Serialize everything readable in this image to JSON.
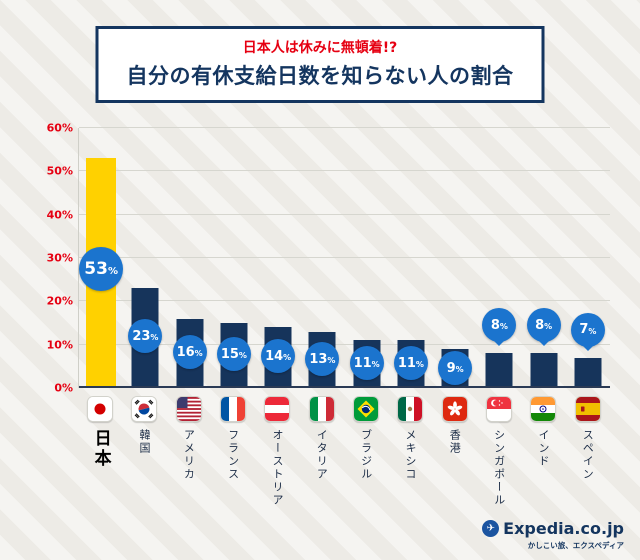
{
  "header": {
    "subtitle": "日本人は休みに無頓着!?",
    "title": "自分の有休支給日数を知らない人の割合"
  },
  "chart_data": {
    "type": "bar",
    "title": "自分の有休支給日数を知らない人の割合",
    "categories": [
      "日本",
      "韓国",
      "アメリカ",
      "フランス",
      "オーストリア",
      "イタリア",
      "ブラジル",
      "メキシコ",
      "香港",
      "シンガポール",
      "インド",
      "スペイン"
    ],
    "values": [
      53,
      23,
      16,
      15,
      14,
      13,
      11,
      11,
      9,
      8,
      8,
      7
    ],
    "value_labels": [
      "53%",
      "23%",
      "16%",
      "15%",
      "14%",
      "13%",
      "11%",
      "11%",
      "9%",
      "8%",
      "8%",
      "7%"
    ],
    "flags": [
      "japan-flag",
      "korea-flag",
      "usa-flag",
      "france-flag",
      "austria-flag",
      "italy-flag",
      "brazil-flag",
      "mexico-flag",
      "hongkong-flag",
      "singapore-flag",
      "india-flag",
      "spain-flag"
    ],
    "ylim": [
      0,
      60
    ],
    "yticks": [
      "0%",
      "10%",
      "20%",
      "30%",
      "40%",
      "50%",
      "60%"
    ],
    "highlight_index": 0,
    "grid": true,
    "legend": "none",
    "colors": {
      "highlight": "#FFD100",
      "bar": "#16345B",
      "badge": "#1B74CE",
      "axis_label": "#E60012"
    }
  },
  "footer": {
    "logo_text": "Expedia.co.jp",
    "tagline": "かしこい旅、エクスペディア"
  }
}
